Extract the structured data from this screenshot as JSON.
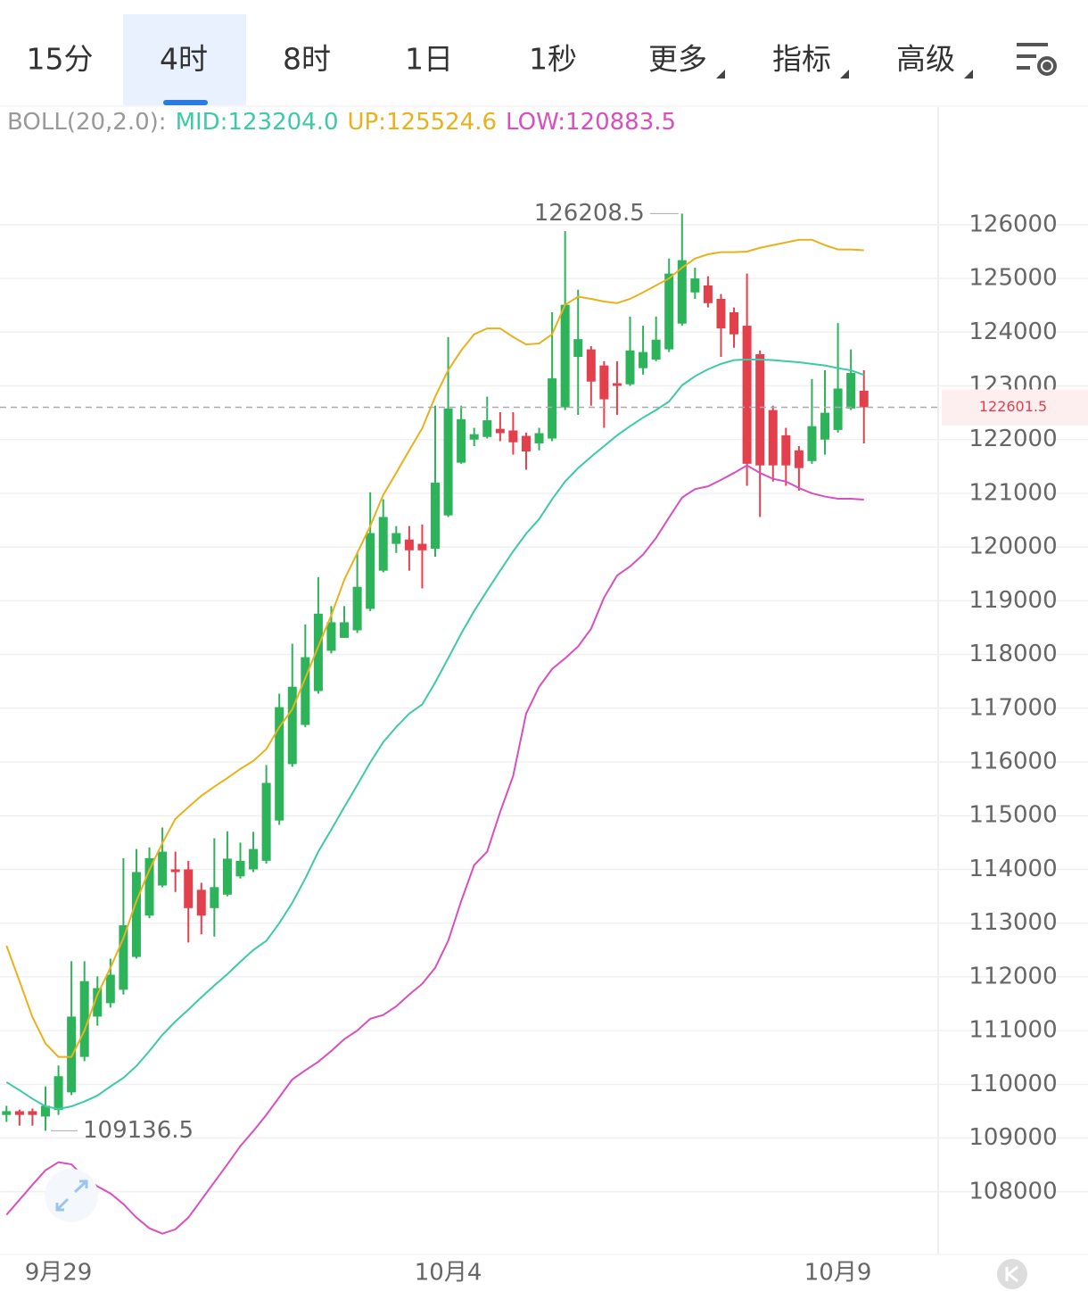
{
  "tabs": {
    "items": [
      "15分",
      "4时",
      "8时",
      "1日",
      "1秒",
      "更多",
      "指标",
      "高级"
    ],
    "active": 1
  },
  "chart_data": {
    "type": "candlestick",
    "indicator": "BOLL(20,2.0):",
    "categories": [
      null,
      null,
      null,
      null,
      "9月29",
      null,
      null,
      null,
      null,
      null,
      null,
      null,
      null,
      null,
      null,
      null,
      null,
      null,
      null,
      null,
      null,
      null,
      null,
      null,
      null,
      null,
      null,
      null,
      null,
      null,
      null,
      null,
      null,
      null,
      "10月4",
      null,
      null,
      null,
      null,
      null,
      null,
      null,
      null,
      null,
      null,
      null,
      null,
      null,
      null,
      null,
      null,
      null,
      null,
      null,
      null,
      null,
      null,
      null,
      null,
      null,
      null,
      null,
      null,
      null,
      "10月9",
      null,
      null
    ],
    "open": [
      109430,
      109500,
      109500,
      109400,
      109520,
      109850,
      110510,
      111260,
      111510,
      111760,
      112370,
      113140,
      113700,
      114000,
      114000,
      113620,
      113280,
      113530,
      113870,
      114000,
      114160,
      114910,
      115960,
      116690,
      117320,
      118070,
      118310,
      118450,
      118850,
      119560,
      120060,
      120140,
      120060,
      119970,
      120590,
      121570,
      122000,
      122050,
      122200,
      122170,
      122070,
      121930,
      122020,
      122600,
      123540,
      123680,
      123380,
      123050,
      123030,
      123330,
      123490,
      123680,
      124160,
      124740,
      124870,
      124620,
      124370,
      124120,
      123590,
      122550,
      122080,
      121800,
      121600,
      122000,
      122180,
      122580,
      122910
    ],
    "high": [
      109600,
      109530,
      109550,
      109960,
      110350,
      112290,
      112290,
      112010,
      112340,
      114210,
      114380,
      114410,
      114780,
      114330,
      114160,
      113750,
      114580,
      114710,
      114500,
      114700,
      115940,
      117270,
      118200,
      118560,
      119440,
      118900,
      118900,
      119890,
      121020,
      120890,
      120390,
      120390,
      120420,
      122630,
      123910,
      122630,
      122220,
      122800,
      122510,
      122510,
      122130,
      122220,
      124370,
      125880,
      124790,
      123740,
      123460,
      123460,
      124290,
      124120,
      124290,
      125370,
      126208.5,
      125200,
      125040,
      124710,
      124460,
      125090,
      123660,
      122630,
      122220,
      121880,
      123130,
      123290,
      124170,
      123680,
      123290
    ],
    "low": [
      109300,
      109230,
      109230,
      109136.5,
      109430,
      109800,
      110430,
      111090,
      111430,
      111670,
      112340,
      113090,
      113670,
      113580,
      112640,
      112790,
      112750,
      113500,
      113830,
      113950,
      114110,
      114830,
      115910,
      116650,
      117270,
      118020,
      118310,
      118400,
      118810,
      119530,
      119890,
      119560,
      119230,
      119820,
      120560,
      121550,
      121880,
      122020,
      121970,
      121720,
      121440,
      121800,
      121970,
      122550,
      122460,
      122630,
      122220,
      122460,
      123000,
      123210,
      123460,
      123630,
      124120,
      124620,
      124460,
      123540,
      123710,
      121140,
      120560,
      121220,
      121140,
      121050,
      121550,
      121720,
      122130,
      122550,
      121930
    ],
    "close": [
      109500,
      109430,
      109430,
      109600,
      110150,
      111260,
      111920,
      111790,
      112040,
      112960,
      113950,
      114210,
      114330,
      113950,
      113280,
      113140,
      113670,
      114200,
      114160,
      114380,
      115610,
      117020,
      117400,
      117950,
      118760,
      118600,
      118600,
      119260,
      120260,
      120560,
      120260,
      119940,
      119940,
      121200,
      122580,
      122380,
      122100,
      122360,
      122120,
      121950,
      121780,
      122120,
      123140,
      124510,
      123870,
      123080,
      122750,
      123000,
      123660,
      123630,
      123860,
      125090,
      125340,
      125000,
      124540,
      124070,
      123960,
      121550,
      121520,
      121520,
      121520,
      121470,
      122250,
      122500,
      122950,
      123240,
      122601.5
    ],
    "up_color": "#2db35a",
    "down_color": "#e3404e",
    "series": [
      {
        "name": "MID:123204.0",
        "color": "#3ec9a7",
        "values": [
          110040,
          109890,
          109730,
          109590,
          109540,
          109590,
          109680,
          109790,
          109960,
          110120,
          110340,
          110620,
          110920,
          111170,
          111390,
          111620,
          111840,
          112050,
          112280,
          112500,
          112670,
          113000,
          113380,
          113830,
          114330,
          114740,
          115160,
          115570,
          115990,
          116370,
          116650,
          116900,
          117070,
          117480,
          117930,
          118390,
          118810,
          119190,
          119560,
          119920,
          120250,
          120520,
          120890,
          121220,
          121470,
          121680,
          121880,
          122080,
          122250,
          122410,
          122550,
          122710,
          123010,
          123180,
          123310,
          123410,
          123480,
          123490,
          123490,
          123480,
          123460,
          123440,
          123410,
          123380,
          123330,
          123290,
          123204.0
        ]
      },
      {
        "name": "UP:125524.6",
        "color": "#e8b21c",
        "values": [
          112580,
          111920,
          111250,
          110760,
          110510,
          110510,
          111000,
          111670,
          112170,
          112720,
          113410,
          113990,
          114490,
          114940,
          115160,
          115370,
          115540,
          115700,
          115870,
          116020,
          116240,
          116650,
          116980,
          117560,
          118150,
          118730,
          119390,
          119890,
          120390,
          120970,
          121380,
          121800,
          122210,
          122800,
          123290,
          123660,
          123960,
          124070,
          124070,
          123910,
          123770,
          123790,
          123960,
          124510,
          124660,
          124620,
          124570,
          124540,
          124620,
          124740,
          124870,
          125000,
          125200,
          125370,
          125450,
          125490,
          125490,
          125500,
          125570,
          125620,
          125670,
          125720,
          125720,
          125620,
          125540,
          125540,
          125524.6
        ]
      },
      {
        "name": "LOW:120883.5",
        "color": "#d94fbd",
        "values": [
          107570,
          107850,
          108130,
          108400,
          108550,
          108510,
          108270,
          108100,
          107970,
          107770,
          107520,
          107320,
          107220,
          107300,
          107520,
          107850,
          108180,
          108510,
          108850,
          109130,
          109430,
          109760,
          110090,
          110260,
          110420,
          110620,
          110840,
          111000,
          111220,
          111290,
          111450,
          111670,
          111870,
          112170,
          112670,
          113410,
          114080,
          114330,
          115070,
          115740,
          116900,
          117400,
          117730,
          117930,
          118150,
          118480,
          119060,
          119470,
          119640,
          119860,
          120170,
          120550,
          120920,
          121080,
          121130,
          121250,
          121380,
          121520,
          121380,
          121270,
          121220,
          121100,
          121000,
          120940,
          120900,
          120900,
          120883.5
        ]
      }
    ],
    "ylim": [
      106850,
      128190
    ],
    "yticks": [
      126000,
      125000,
      124000,
      123000,
      122000,
      121000,
      120000,
      119000,
      118000,
      117000,
      116000,
      115000,
      114000,
      113000,
      112000,
      111000,
      110000,
      109000,
      108000
    ],
    "grid": true
  }
}
